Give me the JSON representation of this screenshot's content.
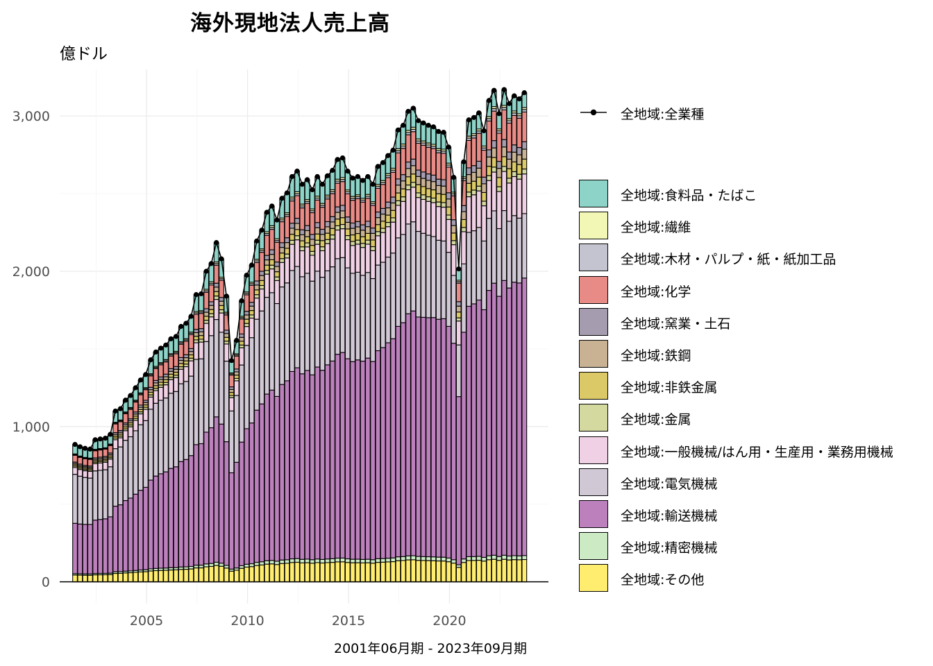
{
  "title": "海外現地法人売上高",
  "y_unit": "億ドル",
  "caption": "2001年06月期 - 2023年09月期",
  "chart_data": {
    "type": "bar",
    "stacked": true,
    "title": "海外現地法人売上高",
    "subtitle": "億ドル",
    "xlabel": "2001年06月期 - 2023年09月期",
    "ylabel": "",
    "x_start": "2001-06",
    "x_end": "2023-09",
    "x_freq": "quarterly",
    "xlim": [
      2000.7,
      2024.9
    ],
    "ylim": [
      -140,
      3300
    ],
    "x_ticks": [
      2005,
      2010,
      2015,
      2020
    ],
    "y_ticks": [
      0,
      1000,
      2000,
      3000
    ],
    "y_tick_labels": [
      "0",
      "1,000",
      "2,000",
      "3,000"
    ],
    "grid": true,
    "legend_position": "right",
    "total_series": {
      "name": "全地域:全業種",
      "color": "#000000",
      "anchors": [
        [
          "2001-06",
          885
        ],
        [
          "2001-09",
          870
        ],
        [
          "2001-12",
          860
        ],
        [
          "2002-03",
          855
        ],
        [
          "2002-06",
          915
        ],
        [
          "2002-09",
          920
        ],
        [
          "2002-12",
          925
        ],
        [
          "2003-03",
          950
        ],
        [
          "2003-06",
          1100
        ],
        [
          "2003-09",
          1115
        ],
        [
          "2003-12",
          1170
        ],
        [
          "2004-03",
          1200
        ],
        [
          "2004-06",
          1250
        ],
        [
          "2004-09",
          1300
        ],
        [
          "2004-12",
          1335
        ],
        [
          "2005-03",
          1430
        ],
        [
          "2005-06",
          1480
        ],
        [
          "2005-09",
          1505
        ],
        [
          "2005-12",
          1525
        ],
        [
          "2006-03",
          1565
        ],
        [
          "2006-06",
          1580
        ],
        [
          "2006-09",
          1645
        ],
        [
          "2006-12",
          1665
        ],
        [
          "2007-03",
          1710
        ],
        [
          "2007-06",
          1850
        ],
        [
          "2007-09",
          1855
        ],
        [
          "2007-12",
          2000
        ],
        [
          "2008-03",
          2050
        ],
        [
          "2008-06",
          2185
        ],
        [
          "2008-09",
          2080
        ],
        [
          "2008-12",
          1840
        ],
        [
          "2009-03",
          1425
        ],
        [
          "2009-06",
          1555
        ],
        [
          "2009-09",
          1810
        ],
        [
          "2009-12",
          1975
        ],
        [
          "2010-03",
          2040
        ],
        [
          "2010-06",
          2195
        ],
        [
          "2010-09",
          2265
        ],
        [
          "2010-12",
          2380
        ],
        [
          "2011-03",
          2420
        ],
        [
          "2011-06",
          2330
        ],
        [
          "2011-09",
          2470
        ],
        [
          "2011-12",
          2505
        ],
        [
          "2012-03",
          2610
        ],
        [
          "2012-06",
          2645
        ],
        [
          "2012-09",
          2560
        ],
        [
          "2012-12",
          2590
        ],
        [
          "2013-03",
          2525
        ],
        [
          "2013-06",
          2610
        ],
        [
          "2013-09",
          2560
        ],
        [
          "2013-12",
          2615
        ],
        [
          "2014-03",
          2650
        ],
        [
          "2014-06",
          2720
        ],
        [
          "2014-09",
          2730
        ],
        [
          "2014-12",
          2645
        ],
        [
          "2015-03",
          2600
        ],
        [
          "2015-06",
          2610
        ],
        [
          "2015-09",
          2585
        ],
        [
          "2015-12",
          2610
        ],
        [
          "2016-03",
          2560
        ],
        [
          "2016-06",
          2675
        ],
        [
          "2016-09",
          2700
        ],
        [
          "2016-12",
          2745
        ],
        [
          "2017-03",
          2780
        ],
        [
          "2017-06",
          2910
        ],
        [
          "2017-09",
          2940
        ],
        [
          "2017-12",
          3030
        ],
        [
          "2018-03",
          3050
        ],
        [
          "2018-06",
          2970
        ],
        [
          "2018-09",
          2955
        ],
        [
          "2018-12",
          2940
        ],
        [
          "2019-03",
          2930
        ],
        [
          "2019-06",
          2900
        ],
        [
          "2019-09",
          2895
        ],
        [
          "2019-12",
          2800
        ],
        [
          "2020-03",
          2605
        ],
        [
          "2020-06",
          2015
        ],
        [
          "2020-09",
          2705
        ],
        [
          "2020-12",
          2975
        ],
        [
          "2021-03",
          2990
        ],
        [
          "2021-06",
          3020
        ],
        [
          "2021-09",
          2905
        ],
        [
          "2021-12",
          3100
        ],
        [
          "2022-03",
          3165
        ],
        [
          "2022-06",
          3015
        ],
        [
          "2022-09",
          3170
        ],
        [
          "2022-12",
          3080
        ],
        [
          "2023-03",
          3130
        ],
        [
          "2023-06",
          3110
        ],
        [
          "2023-09",
          3150
        ]
      ]
    },
    "series": [
      {
        "name": "全地域:その他",
        "color": "#FFED6F",
        "share": [
          0.05,
          0.045
        ]
      },
      {
        "name": "全地域:精密機械",
        "color": "#CCEBC5",
        "share": [
          0.01,
          0.008
        ]
      },
      {
        "name": "全地域:輸送機械",
        "color": "#BC80BD",
        "share": [
          0.37,
          0.56
        ]
      },
      {
        "name": "全地域:電気機械",
        "color": "#D0C8D4",
        "share": [
          0.36,
          0.13
        ]
      },
      {
        "name": "全地域:一般機械/はん用・生産用・業務用機械",
        "color": "#F0D0E4",
        "share": [
          0.05,
          0.08
        ]
      },
      {
        "name": "全地域:金属",
        "color": "#D4D9A0",
        "share": [
          0.01,
          0.01
        ]
      },
      {
        "name": "全地域:非鉄金属",
        "color": "#DAC966",
        "share": [
          0.01,
          0.02
        ]
      },
      {
        "name": "全地域:鉄鋼",
        "color": "#C9B293",
        "share": [
          0.01,
          0.02
        ]
      },
      {
        "name": "全地域:窯業・土石",
        "color": "#A59DAF",
        "share": [
          0.01,
          0.015
        ]
      },
      {
        "name": "全地域:化学",
        "color": "#E88A85",
        "share": [
          0.05,
          0.06
        ]
      },
      {
        "name": "全地域:木材・パルプ・紙・紙加工品",
        "color": "#C4C4D0",
        "share": [
          0.005,
          0.005
        ]
      },
      {
        "name": "全地域:繊維",
        "color": "#F3F7B5",
        "share": [
          0.005,
          0.004
        ]
      },
      {
        "name": "全地域:食料品・たばこ",
        "color": "#8DD3C7",
        "share": [
          0.07,
          0.03
        ]
      }
    ]
  },
  "legend": {
    "line_item": "全地域:全業種",
    "items": [
      {
        "label": "全地域:食料品・たばこ",
        "color": "#8DD3C7"
      },
      {
        "label": "全地域:繊維",
        "color": "#F3F7B5"
      },
      {
        "label": "全地域:木材・パルプ・紙・紙加工品",
        "color": "#C4C4D0"
      },
      {
        "label": "全地域:化学",
        "color": "#E88A85"
      },
      {
        "label": "全地域:窯業・土石",
        "color": "#A59DAF"
      },
      {
        "label": "全地域:鉄鋼",
        "color": "#C9B293"
      },
      {
        "label": "全地域:非鉄金属",
        "color": "#DAC966"
      },
      {
        "label": "全地域:金属",
        "color": "#D4D9A0"
      },
      {
        "label": "全地域:一般機械/はん用・生産用・業務用機械",
        "color": "#F0D0E4"
      },
      {
        "label": "全地域:電気機械",
        "color": "#D0C8D4"
      },
      {
        "label": "全地域:輸送機械",
        "color": "#BC80BD"
      },
      {
        "label": "全地域:精密機械",
        "color": "#CCEBC5"
      },
      {
        "label": "全地域:その他",
        "color": "#FFED6F"
      }
    ]
  }
}
